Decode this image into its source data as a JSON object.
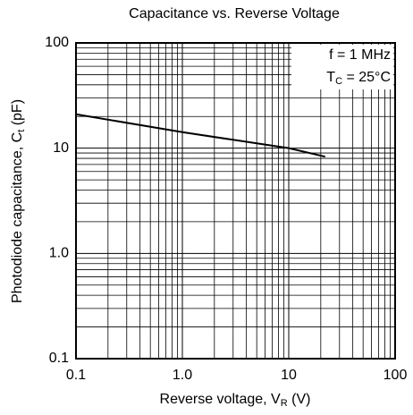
{
  "chart_data": {
    "type": "line",
    "title": "Capacitance vs. Reverse Voltage",
    "x_label": [
      "Reverse voltage, V",
      "R",
      " (V)"
    ],
    "y_label": [
      "Photodiode capacitance, C",
      "t",
      " (pF)"
    ],
    "annotations": [
      [
        "f = 1 MHz"
      ],
      [
        "T",
        "C",
        " = 25°C"
      ]
    ],
    "x": [
      0.1,
      1,
      10,
      22
    ],
    "series": [
      {
        "name": "Ct",
        "color": "#000000",
        "values": [
          21,
          14.2,
          10,
          8.3
        ]
      }
    ],
    "xlim": [
      0.1,
      100
    ],
    "ylim": [
      0.1,
      100
    ],
    "xticks": [
      0.1,
      {
        "value": 1,
        "label": "1.0"
      },
      10,
      100
    ],
    "yticks": [
      0.1,
      {
        "value": 1,
        "label": "1.0"
      },
      10,
      100
    ],
    "xscale": "log",
    "yscale": "log",
    "grid": true,
    "minor_grid": true
  }
}
